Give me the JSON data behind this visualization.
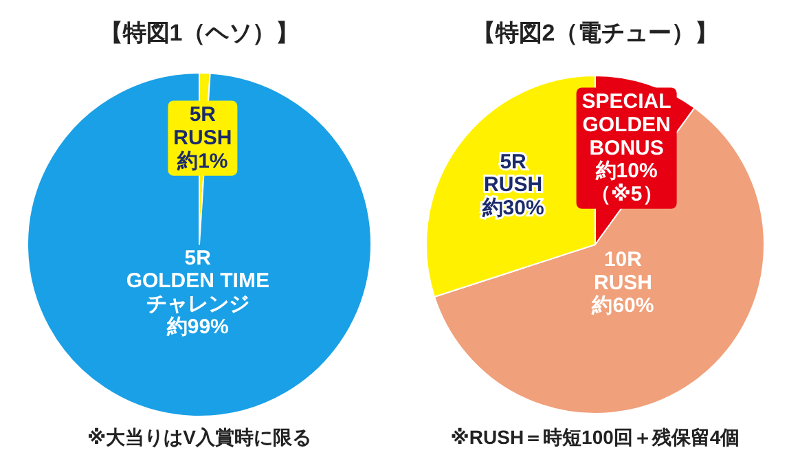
{
  "chart_data": [
    {
      "type": "pie",
      "title": "【特図1（ヘソ）】",
      "categories": [
        "5R\nRUSH",
        "5R\nGOLDEN TIME\nチャレンジ"
      ],
      "values": [
        1,
        99
      ],
      "colors": [
        "#fff100",
        "#1aa0e6"
      ],
      "value_labels": [
        "約1%",
        "約99%"
      ],
      "annotations": [
        "※大当りはV入賞時に限る"
      ]
    },
    {
      "type": "pie",
      "title": "【特図2（電チュー）】",
      "categories": [
        "SPECIAL\nGOLDEN\nBONUS",
        "10R\nRUSH",
        "5R\nRUSH"
      ],
      "values": [
        10,
        60,
        30
      ],
      "colors": [
        "#e60012",
        "#f0a07a",
        "#fff100"
      ],
      "value_labels": [
        "約10%\n（※5）",
        "約60%",
        "約30%"
      ],
      "annotations": [
        "※RUSH＝時短100回＋残保留4個"
      ]
    }
  ]
}
